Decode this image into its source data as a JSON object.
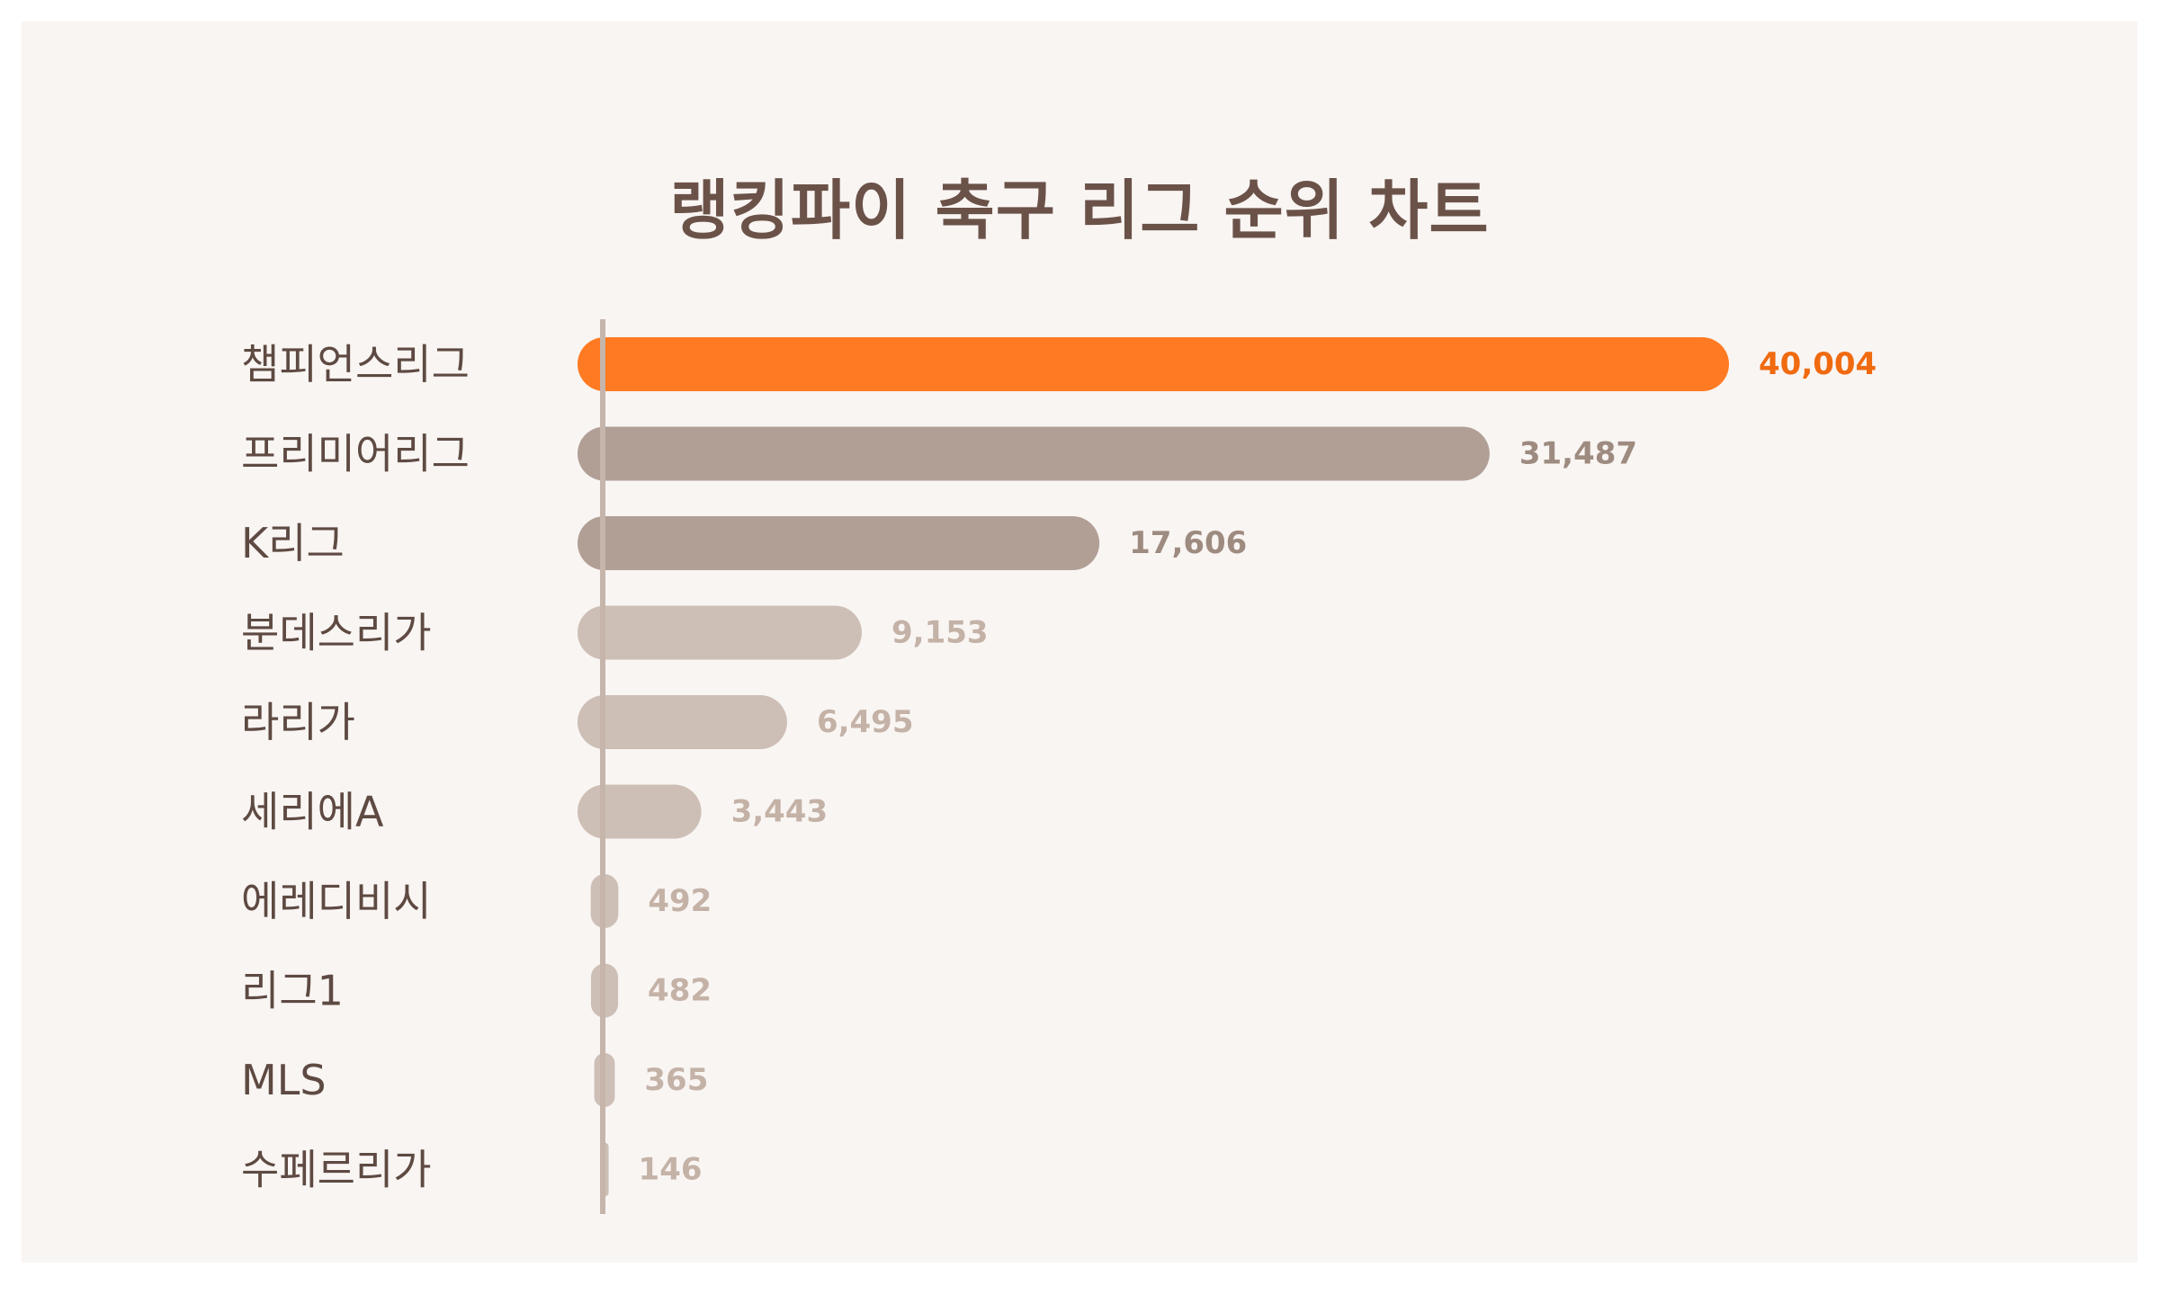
{
  "chart_data": {
    "type": "bar",
    "orientation": "horizontal",
    "title": "랭킹파이 축구 리그 순위 차트",
    "xlabel": "",
    "ylabel": "",
    "categories": [
      "챔피언스리그",
      "프리미어리그",
      "K리그",
      "분데스리가",
      "라리가",
      "세리에A",
      "에레디비시",
      "리그1",
      "MLS",
      "수페르리가"
    ],
    "values": [
      40004,
      31487,
      17606,
      9153,
      6495,
      3443,
      492,
      482,
      365,
      146
    ],
    "value_labels": [
      "40,004",
      "31,487",
      "17,606",
      "9,153",
      "6,495",
      "3,443",
      "492",
      "482",
      "365",
      "146"
    ],
    "xlim": [
      0,
      40004
    ],
    "grid": false,
    "legend": "none",
    "colors": {
      "highlight": "#ff7a22",
      "highlight_text": "#f06a10",
      "tier2": "#b19f96",
      "tier3": "#cdbfb6",
      "axis": "#c5b5ab",
      "title": "#6b5248",
      "category_text": "#5e4a42",
      "tier2_text": "#9e8b80",
      "tier3_text": "#c4b2a7",
      "background": "#f9f5f3"
    }
  }
}
